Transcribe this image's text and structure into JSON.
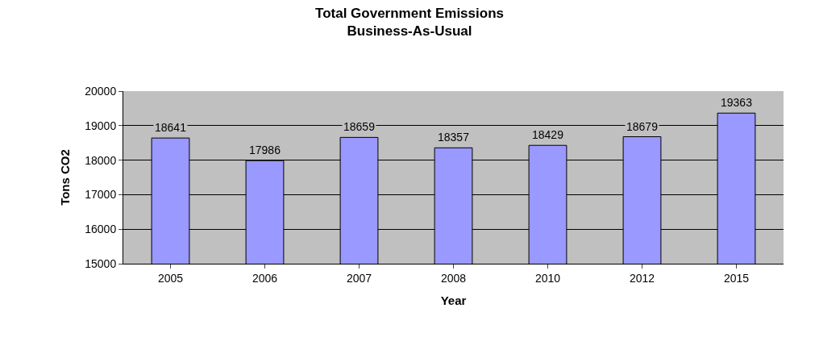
{
  "chart_data": {
    "type": "bar",
    "title": "Total Government Emissions\nBusiness-As-Usual",
    "xlabel": "Year",
    "ylabel": "Tons CO2",
    "categories": [
      "2005",
      "2006",
      "2007",
      "2008",
      "2010",
      "2012",
      "2015"
    ],
    "values": [
      18641,
      17986,
      18659,
      18357,
      18429,
      18679,
      19363
    ],
    "color": "#9999ff",
    "ylim": [
      15000,
      20000
    ],
    "yticks": [
      15000,
      16000,
      17000,
      18000,
      19000,
      20000
    ],
    "grid": "y",
    "legend": false,
    "data_labels": true
  }
}
